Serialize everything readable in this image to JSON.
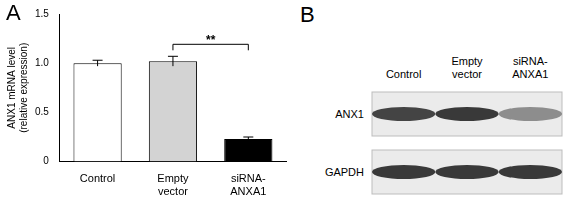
{
  "chart_data": {
    "type": "bar",
    "panel_label": "A",
    "ylabel": "ANX1 mRNA level (relative expression)",
    "categories": [
      "Control",
      "Empty vector",
      "siRNA-ANXA1"
    ],
    "values": [
      1.0,
      1.02,
      0.23
    ],
    "errors": [
      0.03,
      0.05,
      0.02
    ],
    "colors": [
      "#ffffff",
      "#d3d3d3",
      "#000000"
    ],
    "ylim": [
      0,
      1.5
    ],
    "yticks": [
      0,
      0.5,
      {
        "value": 1,
        "label": "1.0"
      },
      1.5
    ],
    "grid": false,
    "annotations": [
      {
        "text": "**",
        "from": "Empty vector",
        "to": "siRNA-ANXA1"
      }
    ]
  },
  "blot": {
    "panel_label": "B",
    "lanes": [
      "Control",
      "Empty vector",
      "siRNA-ANXA1"
    ],
    "rows": [
      {
        "label": "ANX1",
        "band_intensity": [
          0.8,
          0.85,
          0.45
        ]
      },
      {
        "label": "GAPDH",
        "band_intensity": [
          0.85,
          0.85,
          0.85
        ]
      }
    ]
  }
}
